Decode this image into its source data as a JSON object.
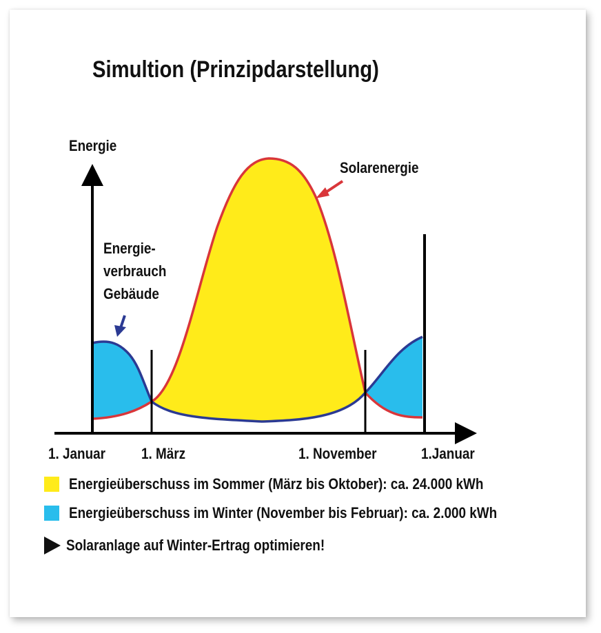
{
  "title": "Simultion (Prinzipdarstellung)",
  "y_axis_label": "Energie",
  "solar_label": "Solarenergie",
  "consumption_label": [
    "Energie-",
    "verbrauch",
    "Gebäude"
  ],
  "x_ticks": [
    "1. Januar",
    "1. März",
    "1. November",
    "1.Januar"
  ],
  "legend": [
    {
      "text": "Energieüberschuss im Sommer (März bis Oktober): ca. 24.000 kWh",
      "color": "#ffeb1a"
    },
    {
      "text": "Energieüberschuss im Winter (November bis Februar): ca. 2.000 kWh",
      "color": "#29bdec"
    }
  ],
  "note": "Solaranlage auf Winter-Ertrag optimieren!",
  "colors": {
    "summer_fill": "#ffeb1a",
    "winter_fill": "#29bdec",
    "solar_line": "#d9363a",
    "consumption_line": "#2b3a93",
    "axis": "#000000"
  }
}
